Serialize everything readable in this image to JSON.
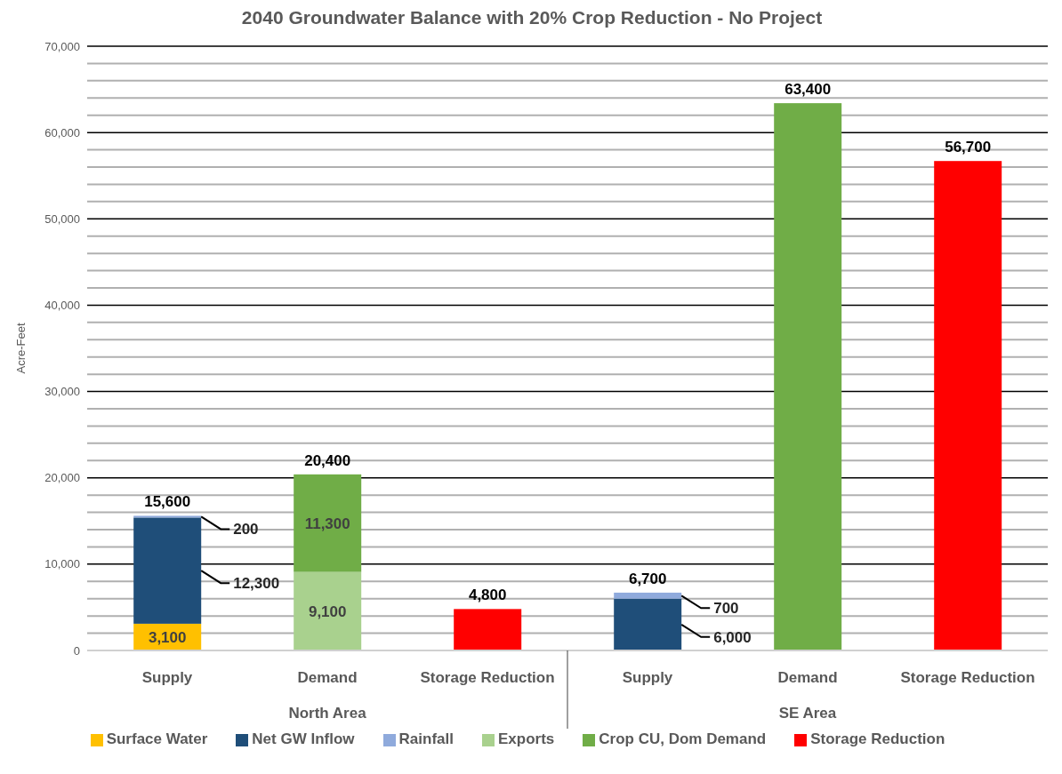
{
  "chart_data": {
    "type": "bar",
    "stacked": true,
    "title": "2040 Groundwater Balance with 20% Crop Reduction  - No Project",
    "ylabel": "Acre-Feet",
    "categories": [
      "Supply",
      "Demand",
      "Storage Reduction",
      "Supply",
      "Demand",
      "Storage Reduction"
    ],
    "annotations": [
      "North Area",
      "SE Area"
    ],
    "series": [
      {
        "name": "Surface Water",
        "color": "#ffc000",
        "values": [
          3100,
          null,
          null,
          null,
          null,
          null
        ],
        "value_labels": [
          "3,100",
          null,
          null,
          null,
          null,
          null
        ]
      },
      {
        "name": "Net GW Inflow",
        "color": "#1f4e79",
        "values": [
          12300,
          null,
          null,
          6000,
          null,
          null
        ],
        "value_labels": [
          "12,300",
          null,
          null,
          "6,000",
          null,
          null
        ]
      },
      {
        "name": "Rainfall",
        "color": "#8faadc",
        "values": [
          200,
          null,
          null,
          700,
          null,
          null
        ],
        "value_labels": [
          "200",
          null,
          null,
          "700",
          null,
          null
        ]
      },
      {
        "name": "Exports",
        "color": "#a9d18e",
        "values": [
          null,
          9100,
          null,
          null,
          null,
          null
        ],
        "value_labels": [
          null,
          "9,100",
          null,
          null,
          null,
          null
        ]
      },
      {
        "name": "Crop CU, Dom Demand",
        "color": "#70ad47",
        "values": [
          null,
          11300,
          null,
          null,
          63400,
          null
        ],
        "value_labels": [
          null,
          "11,300",
          null,
          null,
          null,
          null
        ]
      },
      {
        "name": "Storage Reduction",
        "color": "#ff0000",
        "values": [
          null,
          null,
          4800,
          null,
          null,
          56700
        ]
      }
    ],
    "totals": [
      "15,600",
      "20,400",
      "4,800",
      "6,700",
      "63,400",
      "56,700"
    ],
    "ylim": [
      0,
      70000
    ],
    "yticks": [
      {
        "value": 0,
        "label": "0"
      },
      {
        "value": 10000,
        "label": "10,000"
      },
      {
        "value": 20000,
        "label": "20,000"
      },
      {
        "value": 30000,
        "label": "30,000"
      },
      {
        "value": 40000,
        "label": "40,000"
      },
      {
        "value": 50000,
        "label": "50,000"
      },
      {
        "value": 60000,
        "label": "60,000"
      },
      {
        "value": 70000,
        "label": "70,000"
      }
    ],
    "grid": "y",
    "legend": "bottom"
  }
}
